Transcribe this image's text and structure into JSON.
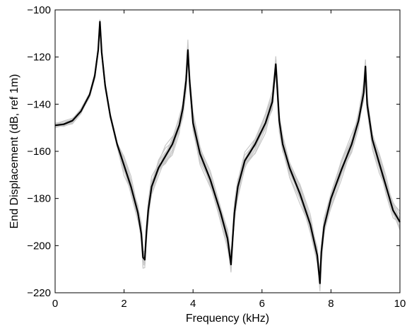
{
  "chart_data": {
    "type": "line",
    "title": "",
    "xlabel": "Frequency (kHz)",
    "ylabel": "End Displacement (dB, ref 1m)",
    "xlim": [
      0,
      10
    ],
    "ylim": [
      -220,
      -100
    ],
    "xticks": [
      0,
      2,
      4,
      6,
      8,
      10
    ],
    "yticks": [
      -220,
      -200,
      -180,
      -160,
      -140,
      -120,
      -100
    ],
    "grid": false,
    "legend": "none",
    "colors": {
      "mean": "#000000",
      "samples": "#c8c8c8"
    },
    "x": [
      0,
      0.25,
      0.5,
      0.75,
      1.0,
      1.15,
      1.25,
      1.3,
      1.35,
      1.45,
      1.6,
      1.8,
      2.0,
      2.2,
      2.4,
      2.5,
      2.55,
      2.6,
      2.65,
      2.7,
      2.8,
      3.0,
      3.2,
      3.4,
      3.6,
      3.7,
      3.8,
      3.85,
      3.9,
      4.0,
      4.2,
      4.5,
      4.8,
      5.0,
      5.1,
      5.15,
      5.2,
      5.3,
      5.5,
      5.8,
      6.1,
      6.3,
      6.4,
      6.45,
      6.5,
      6.6,
      6.8,
      7.1,
      7.4,
      7.6,
      7.68,
      7.72,
      7.8,
      8.0,
      8.3,
      8.6,
      8.8,
      8.95,
      9.0,
      9.05,
      9.2,
      9.4,
      9.6,
      9.8,
      10.0
    ],
    "series": [
      {
        "values": [
          -149,
          -148.5,
          -147,
          -143,
          -136,
          -128,
          -117,
          -105,
          -118,
          -132,
          -145,
          -157,
          -166,
          -175,
          -186,
          -195,
          -205,
          -206,
          -194,
          -185,
          -175,
          -167,
          -162,
          -157,
          -149,
          -142,
          -130,
          -117,
          -130,
          -148,
          -161,
          -172,
          -186,
          -197,
          -208,
          -197,
          -186,
          -175,
          -164,
          -157,
          -148,
          -139,
          -123,
          -135,
          -147,
          -157,
          -167,
          -178,
          -191,
          -204,
          -216,
          -203,
          -192,
          -180,
          -168,
          -157,
          -147,
          -135,
          -124,
          -140,
          -155,
          -165,
          -175,
          -185,
          -190
        ]
      }
    ]
  }
}
